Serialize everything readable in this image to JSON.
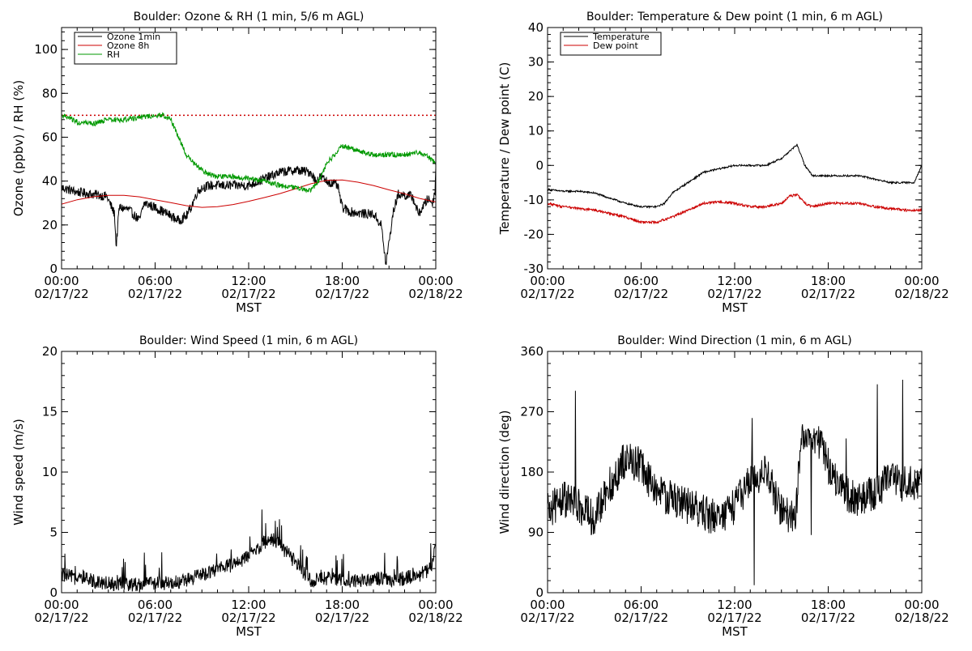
{
  "chart_data": [
    {
      "type": "line",
      "title": "Boulder: Ozone & RH (1 min, 5/6 m AGL)",
      "xlabel": "MST",
      "ylabel": "Ozone (ppbv) / RH (%)",
      "xlim": [
        0,
        24
      ],
      "ylim": [
        0,
        110
      ],
      "yticks": [
        0,
        20,
        40,
        60,
        80,
        100
      ],
      "xticks": [
        {
          "value": 0,
          "time": "00:00",
          "date": "02/17/22"
        },
        {
          "value": 6,
          "time": "06:00",
          "date": "02/17/22"
        },
        {
          "value": 12,
          "time": "12:00",
          "date": "02/17/22"
        },
        {
          "value": 18,
          "time": "18:00",
          "date": "02/17/22"
        },
        {
          "value": 24,
          "time": "00:00",
          "date": "02/18/22"
        }
      ],
      "legend_position": "top-left",
      "reference_line": {
        "value": 70,
        "color": "#cc0000",
        "style": "dotted"
      },
      "series": [
        {
          "name": "Ozone 1min",
          "color": "#000000",
          "noise": 2.2,
          "noisy": true,
          "x": [
            0,
            1,
            2,
            2.9,
            3.4,
            3.5,
            3.7,
            4.3,
            5.0,
            5.3,
            6.0,
            6.8,
            7.5,
            8.0,
            8.3,
            8.7,
            9.0,
            9.5,
            10.5,
            12.0,
            13.0,
            14.0,
            15.0,
            16.0,
            16.3,
            16.6,
            17.0,
            17.7,
            18.0,
            18.5,
            19.5,
            20.0,
            20.5,
            20.8,
            21.3,
            21.6,
            22.5,
            22.9,
            23.5,
            23.8,
            23.95,
            24.0
          ],
          "y": [
            37,
            35,
            34,
            33,
            25,
            10,
            28,
            27,
            22,
            30,
            28,
            25,
            22,
            24,
            28,
            35,
            37,
            38,
            38,
            38,
            41,
            44,
            45,
            44,
            40,
            42,
            40,
            38,
            28,
            26,
            25,
            25,
            20,
            2,
            27,
            34,
            33,
            25,
            32,
            30,
            35,
            48
          ]
        },
        {
          "name": "Ozone 8h",
          "color": "#cc0000",
          "noise": 0,
          "noisy": false,
          "x": [
            0,
            1,
            2,
            3,
            4,
            5,
            6,
            7,
            8,
            9,
            10,
            11,
            12,
            13,
            14,
            15,
            16,
            17,
            18,
            19,
            20,
            21,
            22,
            23,
            24
          ],
          "y": [
            29.5,
            31.5,
            32.8,
            33.5,
            33.5,
            32.8,
            31.5,
            30.2,
            28.8,
            28.0,
            28.3,
            29.3,
            30.8,
            32.5,
            34.3,
            36.5,
            38.8,
            40.3,
            40.5,
            39.5,
            38.0,
            36.0,
            34.2,
            32.0,
            30.5
          ]
        },
        {
          "name": "RH",
          "color": "#009900",
          "noise": 1.2,
          "noisy": true,
          "x": [
            0,
            1,
            2,
            3,
            4,
            5,
            6,
            6.5,
            7,
            7.5,
            8,
            8.5,
            9,
            9.5,
            10,
            11,
            12,
            13,
            14,
            15,
            16,
            16.5,
            17,
            17.5,
            18,
            19,
            20,
            21,
            22,
            23,
            23.5,
            24
          ],
          "y": [
            70,
            67,
            66,
            68,
            68,
            69,
            70,
            70,
            68,
            60,
            52,
            48,
            45,
            43,
            42,
            42,
            41,
            40,
            38,
            37,
            36,
            40,
            48,
            52,
            56,
            54,
            52,
            52,
            52,
            53,
            51,
            48
          ]
        }
      ]
    },
    {
      "type": "line",
      "title": "Boulder: Temperature & Dew point (1 min, 6 m AGL)",
      "xlabel": "MST",
      "ylabel": "Temperature / Dew point (C)",
      "xlim": [
        0,
        24
      ],
      "ylim": [
        -30,
        40
      ],
      "yticks": [
        -30,
        -20,
        -10,
        0,
        10,
        20,
        30,
        40
      ],
      "xticks": [
        {
          "value": 0,
          "time": "00:00",
          "date": "02/17/22"
        },
        {
          "value": 6,
          "time": "06:00",
          "date": "02/17/22"
        },
        {
          "value": 12,
          "time": "12:00",
          "date": "02/17/22"
        },
        {
          "value": 18,
          "time": "18:00",
          "date": "02/17/22"
        },
        {
          "value": 24,
          "time": "00:00",
          "date": "02/18/22"
        }
      ],
      "legend_position": "top-left",
      "series": [
        {
          "name": "Temperature",
          "color": "#000000",
          "noise": 0.25,
          "noisy": true,
          "x": [
            0,
            1,
            2,
            3,
            4,
            5,
            6,
            7,
            7.5,
            8,
            9,
            10,
            11,
            12,
            13,
            14,
            15,
            15.5,
            16,
            16.5,
            17,
            18,
            19,
            20,
            21,
            22,
            23,
            23.5,
            24
          ],
          "y": [
            -7,
            -7.5,
            -7.5,
            -8,
            -9.5,
            -11,
            -12,
            -12,
            -11,
            -8,
            -5,
            -2,
            -1,
            0,
            0,
            0,
            2,
            4,
            6,
            0,
            -3,
            -3,
            -3,
            -3,
            -4,
            -5,
            -5,
            -5,
            0
          ]
        },
        {
          "name": "Dew point",
          "color": "#cc0000",
          "noise": 0.35,
          "noisy": true,
          "x": [
            0,
            1,
            2,
            3,
            4,
            5,
            6,
            7,
            8,
            9,
            10,
            11,
            12,
            13,
            14,
            15,
            15.5,
            16,
            16.5,
            17,
            18,
            19,
            20,
            21,
            22,
            23,
            24
          ],
          "y": [
            -11,
            -12,
            -12.5,
            -13,
            -14,
            -15,
            -16.5,
            -16.5,
            -15,
            -13,
            -11,
            -10.5,
            -11,
            -12,
            -12,
            -11,
            -9,
            -8.5,
            -11,
            -12,
            -11,
            -11,
            -11,
            -12,
            -12.5,
            -13,
            -13
          ]
        }
      ]
    },
    {
      "type": "line",
      "title": "Boulder: Wind Speed (1 min, 6 m AGL)",
      "xlabel": "MST",
      "ylabel": "Wind speed (m/s)",
      "xlim": [
        0,
        24
      ],
      "ylim": [
        0,
        20
      ],
      "yticks": [
        0,
        5,
        10,
        15,
        20
      ],
      "xticks": [
        {
          "value": 0,
          "time": "00:00",
          "date": "02/17/22"
        },
        {
          "value": 6,
          "time": "06:00",
          "date": "02/17/22"
        },
        {
          "value": 12,
          "time": "12:00",
          "date": "02/17/22"
        },
        {
          "value": 18,
          "time": "18:00",
          "date": "02/17/22"
        },
        {
          "value": 24,
          "time": "00:00",
          "date": "02/18/22"
        }
      ],
      "series": [
        {
          "name": "",
          "color": "#000000",
          "noise": 0.6,
          "noisy": true,
          "x": [
            0,
            1,
            2,
            3,
            4,
            5,
            6,
            7,
            8,
            9,
            10,
            11,
            12,
            13,
            13.5,
            14,
            15,
            16,
            17,
            18,
            19,
            20,
            21,
            22,
            23,
            23.7,
            24
          ],
          "y": [
            1.5,
            1.2,
            1.0,
            0.8,
            0.7,
            0.7,
            0.8,
            0.8,
            1.0,
            1.5,
            2.0,
            2.3,
            3.0,
            4.2,
            4.5,
            4.0,
            2.5,
            1.0,
            1.2,
            1.0,
            1.0,
            1.2,
            1.0,
            1.2,
            1.5,
            2.0,
            4.0
          ]
        }
      ]
    },
    {
      "type": "line",
      "title": "Boulder: Wind Direction (1 min, 6 m AGL)",
      "xlabel": "MST",
      "ylabel": "Wind direction (deg)",
      "xlim": [
        0,
        24
      ],
      "ylim": [
        0,
        360
      ],
      "yticks": [
        0,
        90,
        180,
        270,
        360
      ],
      "xticks": [
        {
          "value": 0,
          "time": "00:00",
          "date": "02/17/22"
        },
        {
          "value": 6,
          "time": "06:00",
          "date": "02/17/22"
        },
        {
          "value": 12,
          "time": "12:00",
          "date": "02/17/22"
        },
        {
          "value": 18,
          "time": "18:00",
          "date": "02/17/22"
        },
        {
          "value": 24,
          "time": "00:00",
          "date": "02/18/22"
        }
      ],
      "series": [
        {
          "name": "",
          "color": "#000000",
          "noise": 28,
          "noisy": true,
          "x": [
            0,
            1,
            2,
            3,
            4,
            5,
            6,
            6.5,
            7,
            8,
            9,
            10,
            11,
            12,
            13,
            14,
            15,
            15.9,
            16.3,
            16.8,
            17.5,
            18,
            19,
            20,
            21,
            22,
            23,
            24
          ],
          "y": [
            120,
            140,
            130,
            110,
            160,
            200,
            190,
            170,
            150,
            140,
            130,
            120,
            110,
            130,
            170,
            180,
            120,
            110,
            240,
            240,
            220,
            190,
            150,
            140,
            150,
            170,
            160,
            170
          ]
        }
      ]
    }
  ]
}
